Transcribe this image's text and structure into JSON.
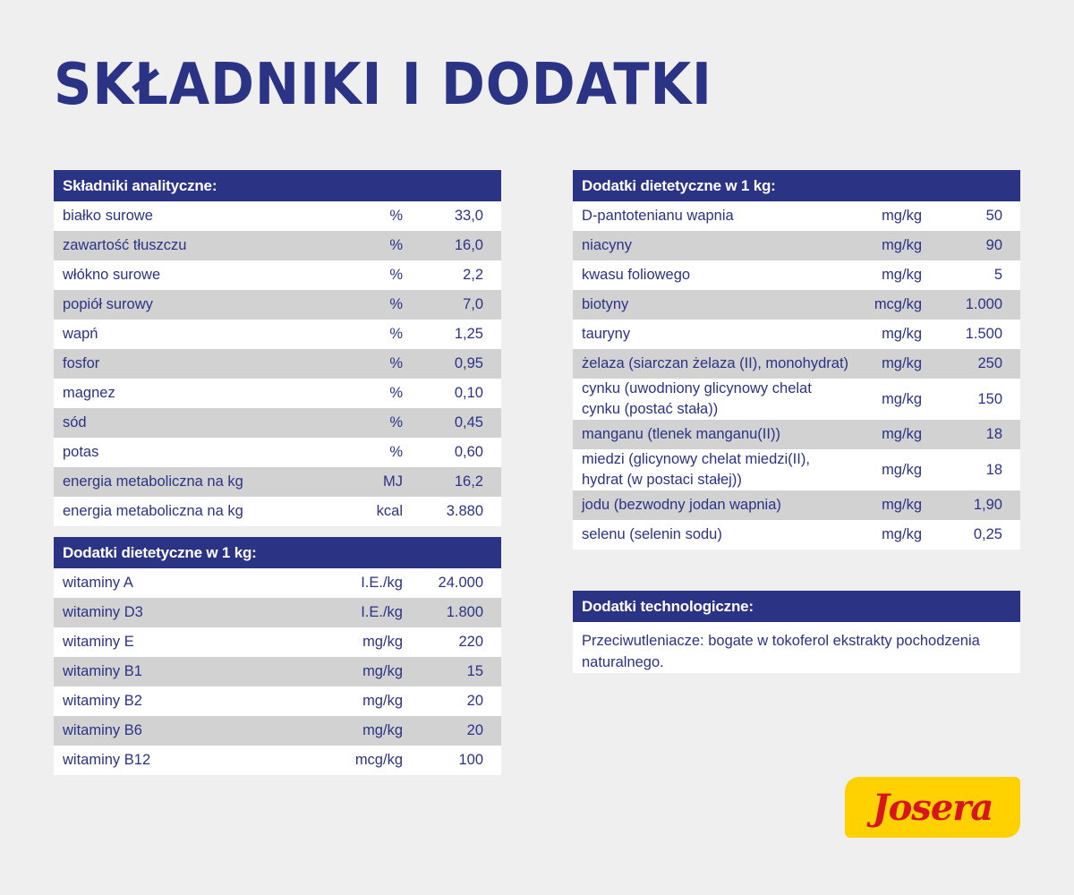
{
  "title": "SKŁADNIKI I DODATKI",
  "tables": [
    {
      "header": "Składniki analityczne:",
      "rows": [
        [
          "białko surowe",
          "%",
          "33,0"
        ],
        [
          "zawartość tłuszczu",
          "%",
          "16,0"
        ],
        [
          "włókno surowe",
          "%",
          "2,2"
        ],
        [
          "popiół surowy",
          "%",
          "7,0"
        ],
        [
          "wapń",
          "%",
          "1,25"
        ],
        [
          "fosfor",
          "%",
          "0,95"
        ],
        [
          "magnez",
          "%",
          "0,10"
        ],
        [
          "sód",
          "%",
          "0,45"
        ],
        [
          "potas",
          "%",
          "0,60"
        ],
        [
          "energia metaboliczna na kg",
          "MJ",
          "16,2"
        ],
        [
          "energia metaboliczna na kg",
          "kcal",
          "3.880"
        ]
      ]
    },
    {
      "header": "Dodatki dietetyczne w 1 kg:",
      "rows": [
        [
          "witaminy A",
          "I.E./kg",
          "24.000"
        ],
        [
          "witaminy D3",
          "I.E./kg",
          "1.800"
        ],
        [
          "witaminy E",
          "mg/kg",
          "220"
        ],
        [
          "witaminy B1",
          "mg/kg",
          "15"
        ],
        [
          "witaminy B2",
          "mg/kg",
          "20"
        ],
        [
          "witaminy B6",
          "mg/kg",
          "20"
        ],
        [
          "witaminy B12",
          "mcg/kg",
          "100"
        ]
      ]
    },
    {
      "header": "Dodatki dietetyczne w 1 kg:",
      "rows": [
        [
          "D-pantotenianu wapnia",
          "mg/kg",
          "50"
        ],
        [
          "niacyny",
          "mg/kg",
          "90"
        ],
        [
          "kwasu foliowego",
          "mg/kg",
          "5"
        ],
        [
          "biotyny",
          "mcg/kg",
          "1.000"
        ],
        [
          "tauryny",
          "mg/kg",
          "1.500"
        ],
        [
          "żelaza (siarczan żelaza (II), monohydrat)",
          "mg/kg",
          "250"
        ],
        [
          "cynku (uwodniony glicynowy chelat cynku (postać stała))",
          "mg/kg",
          "150"
        ],
        [
          "manganu (tlenek manganu(II))",
          "mg/kg",
          "18"
        ],
        [
          "miedzi (glicynowy chelat miedzi(II), hydrat (w postaci stałej))",
          "mg/kg",
          "18"
        ],
        [
          "jodu (bezwodny jodan wapnia)",
          "mg/kg",
          "1,90"
        ],
        [
          "selenu (selenin sodu)",
          "mg/kg",
          "0,25"
        ]
      ]
    }
  ],
  "note": {
    "header": "Dodatki technologiczne:",
    "text": "Przeciwutleniacze: bogate w tokoferol ekstrakty pochodzenia naturalnego."
  },
  "logo": "Josera"
}
